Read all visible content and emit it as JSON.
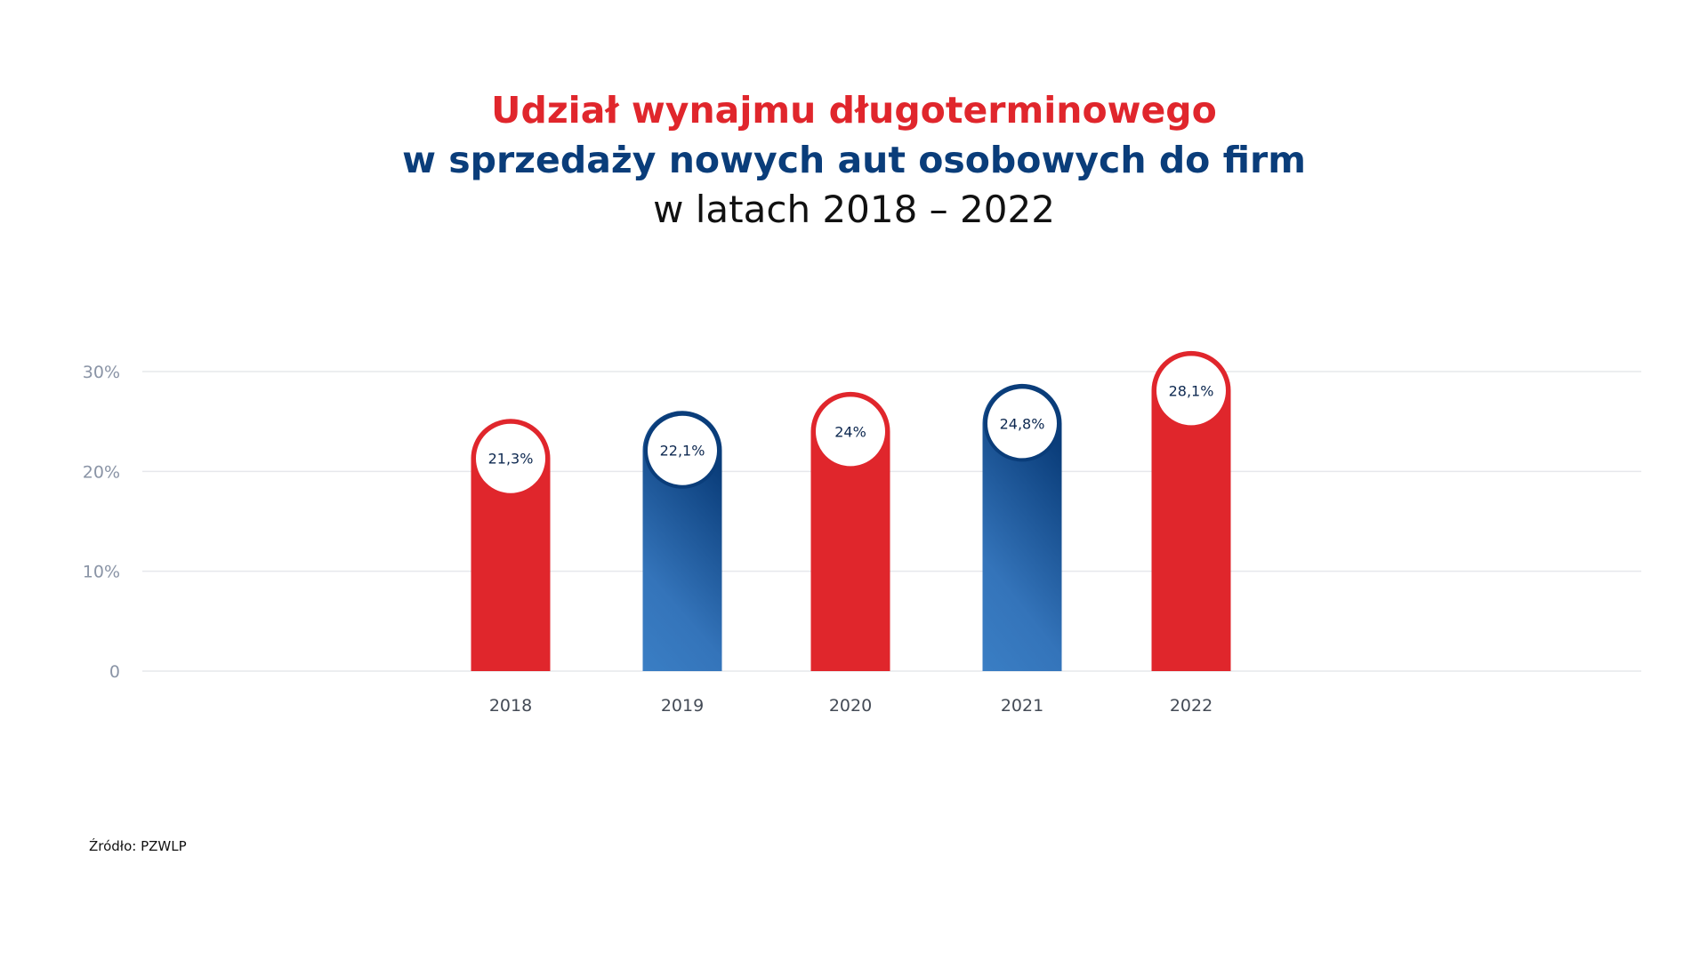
{
  "title": {
    "line1": "Udział wynajmu długoterminowego",
    "line2": "w sprzedaży nowych aut osobowych do firm",
    "line3": "w latach 2018 – 2022"
  },
  "source": "Źródło: PZWLP",
  "colors": {
    "red": "#e0262c",
    "navy": "#0a3d7a",
    "blue_light": "#3a7ec4",
    "label_text": "#0d2850",
    "axis_text": "#8a94a6",
    "grid": "#e6e8ec"
  },
  "chart_data": {
    "type": "bar",
    "categories": [
      "2018",
      "2019",
      "2020",
      "2021",
      "2022"
    ],
    "values": [
      21.3,
      22.1,
      24.0,
      24.8,
      28.1
    ],
    "data_labels": [
      "21,3%",
      "22,1%",
      "24%",
      "24,8%",
      "28,1%"
    ],
    "bar_colors": [
      "red",
      "blue",
      "red",
      "blue",
      "red"
    ],
    "ylim": [
      0,
      30
    ],
    "yticks": [
      0,
      10,
      20,
      30
    ],
    "ytick_labels": [
      "0",
      "10%",
      "20%",
      "30%"
    ],
    "grid": true,
    "xlabel": "",
    "ylabel": ""
  }
}
